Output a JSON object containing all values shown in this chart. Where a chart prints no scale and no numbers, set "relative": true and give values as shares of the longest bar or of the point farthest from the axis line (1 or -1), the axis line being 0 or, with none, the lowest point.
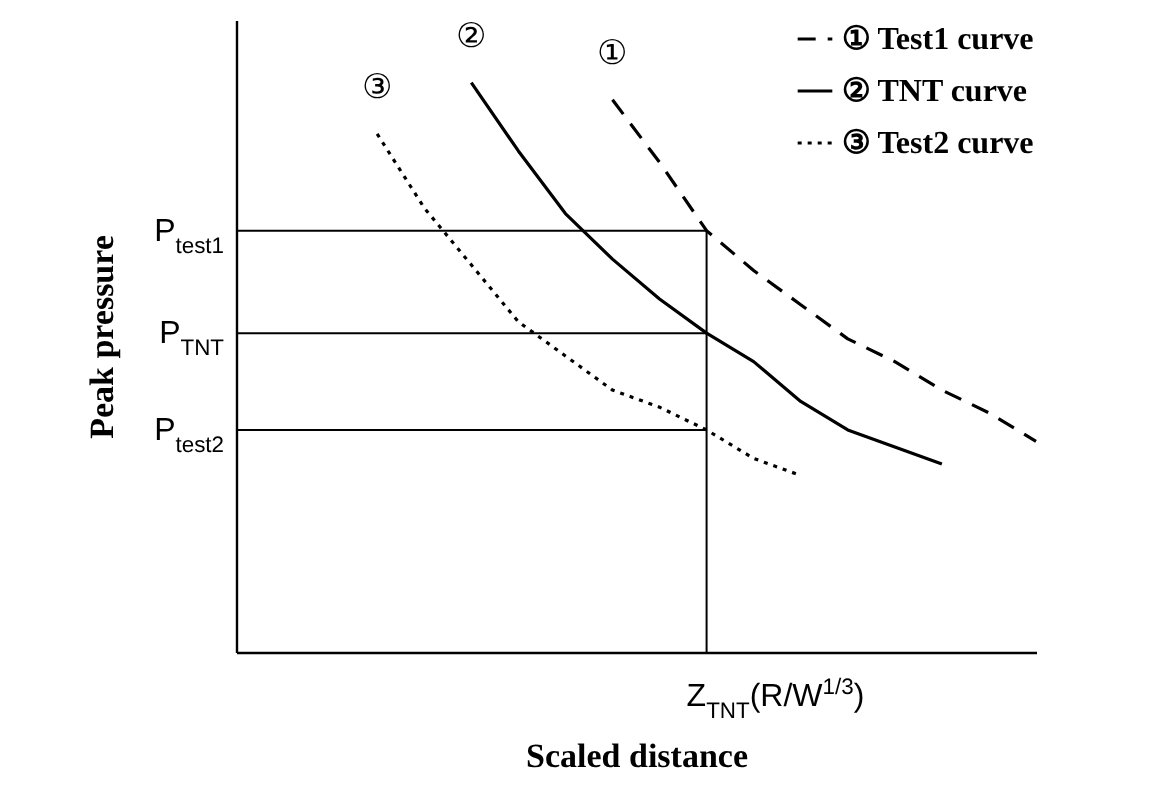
{
  "chart_data": {
    "type": "line",
    "relative": true,
    "xlabel": "Scaled distance",
    "ylabel": "Peak pressure",
    "legend": "top right",
    "categories": [
      null,
      null,
      null,
      null,
      null,
      null,
      null,
      null,
      null,
      null,
      null,
      null,
      null,
      null,
      null,
      null,
      null,
      null
    ],
    "series": [
      {
        "name": "① Test1 curve",
        "color": "#000000",
        "line_style": "dashed",
        "values": [
          null,
          null,
          null,
          null,
          null,
          null,
          null,
          null,
          0.97,
          0.86,
          0.74,
          0.67,
          0.61,
          0.55,
          0.51,
          0.46,
          0.42,
          0.37
        ]
      },
      {
        "name": "② TNT curve",
        "color": "#000000",
        "line_style": "solid",
        "values": [
          null,
          null,
          null,
          null,
          null,
          1.0,
          0.88,
          0.77,
          0.69,
          0.62,
          0.56,
          0.51,
          0.44,
          0.39,
          0.36,
          0.33,
          null,
          null
        ]
      },
      {
        "name": "③ Test2 curve",
        "color": "#000000",
        "line_style": "dotted",
        "values": [
          null,
          null,
          null,
          0.91,
          0.78,
          0.68,
          0.58,
          0.52,
          0.46,
          0.43,
          0.39,
          0.34,
          0.31,
          null,
          null,
          null,
          null,
          null
        ]
      }
    ],
    "ref_lines": [
      {
        "axis": "y",
        "value": 0.74,
        "label": "P$_{test1}$"
      },
      {
        "axis": "y",
        "value": 0.56,
        "label": "P$_{TNT}$"
      },
      {
        "axis": "y",
        "value": 0.39,
        "label": "P$_{test2}$"
      }
    ],
    "annotations": [
      "①",
      "②",
      "③",
      "Z$_{TNT}$(R/W$^{1/3}$)"
    ]
  }
}
